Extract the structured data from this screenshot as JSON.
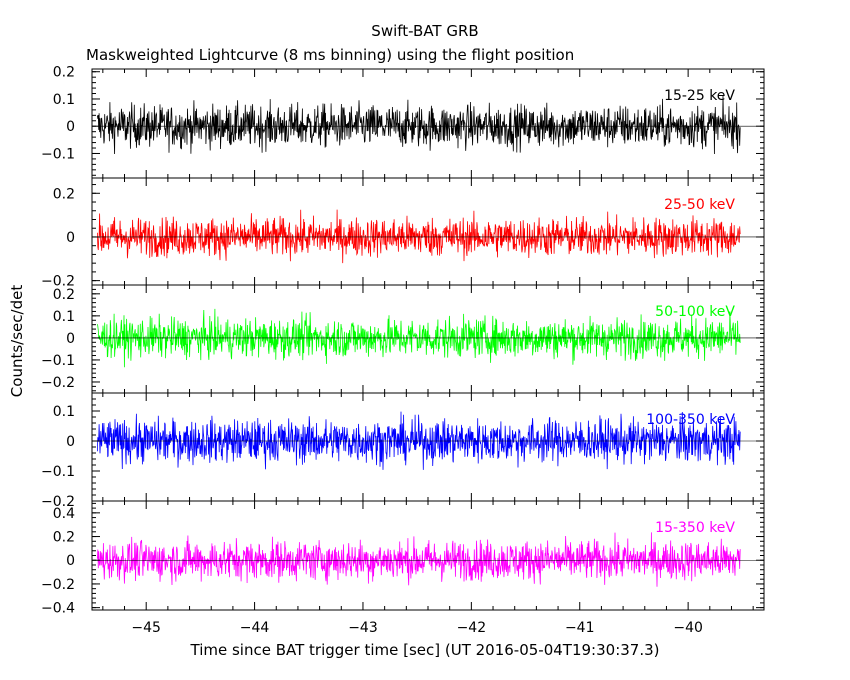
{
  "chart_data": [
    {
      "type": "line",
      "title": "Swift-BAT GRB",
      "subtitle": "Maskweighted Lightcurve (8 ms binning) using the flight position",
      "band_label": "15-25 keV",
      "color": "#000000",
      "xlim": [
        -45.5,
        -39.3
      ],
      "ylim": [
        -0.19,
        0.21
      ],
      "yticks": [
        -0.1,
        0,
        0.1,
        0.2
      ],
      "ytick_labels": [
        "−0.1",
        "0",
        "0.1",
        "0.2"
      ],
      "noise_amplitude": 0.07,
      "x_start": -45.45,
      "x_end": -39.52
    },
    {
      "type": "line",
      "band_label": "25-50 keV",
      "color": "#ff0000",
      "xlim": [
        -45.5,
        -39.3
      ],
      "ylim": [
        -0.22,
        0.27
      ],
      "yticks": [
        -0.2,
        0,
        0.2
      ],
      "ytick_labels": [
        "−0.2",
        "0",
        "0.2"
      ],
      "noise_amplitude": 0.08,
      "x_start": -45.45,
      "x_end": -39.52
    },
    {
      "type": "line",
      "band_label": "50-100 keV",
      "color": "#00ff00",
      "xlim": [
        -45.5,
        -39.3
      ],
      "ylim": [
        -0.25,
        0.24
      ],
      "yticks": [
        -0.2,
        -0.1,
        0,
        0.1,
        0.2
      ],
      "ytick_labels": [
        "−0.2",
        "−0.1",
        "0",
        "0.1",
        "0.2"
      ],
      "noise_amplitude": 0.08,
      "x_start": -45.45,
      "x_end": -39.52
    },
    {
      "type": "line",
      "band_label": "100-350 keV",
      "color": "#0000ff",
      "xlim": [
        -45.5,
        -39.3
      ],
      "ylim": [
        -0.2,
        0.16
      ],
      "yticks": [
        -0.2,
        -0.1,
        0,
        0.1
      ],
      "ytick_labels": [
        "−0.2",
        "−0.1",
        "0",
        "0.1"
      ],
      "noise_amplitude": 0.065,
      "x_start": -45.45,
      "x_end": -39.52
    },
    {
      "type": "line",
      "band_label": "15-350 keV",
      "color": "#ff00ff",
      "xlim": [
        -45.5,
        -39.3
      ],
      "ylim": [
        -0.42,
        0.5
      ],
      "yticks": [
        -0.4,
        -0.2,
        0,
        0.2,
        0.4
      ],
      "ytick_labels": [
        "−0.4",
        "−0.2",
        "0",
        "0.2",
        "0.4"
      ],
      "noise_amplitude": 0.15,
      "x_start": -45.45,
      "x_end": -39.52
    }
  ],
  "xaxis": {
    "label": "Time since BAT trigger time [sec] (UT 2016-05-04T19:30:37.3)",
    "ticks": [
      -45,
      -44,
      -43,
      -42,
      -41,
      -40
    ],
    "tick_labels": [
      "−45",
      "−44",
      "−43",
      "−42",
      "−41",
      "−40"
    ]
  },
  "yaxis": {
    "label": "Counts/sec/det"
  }
}
